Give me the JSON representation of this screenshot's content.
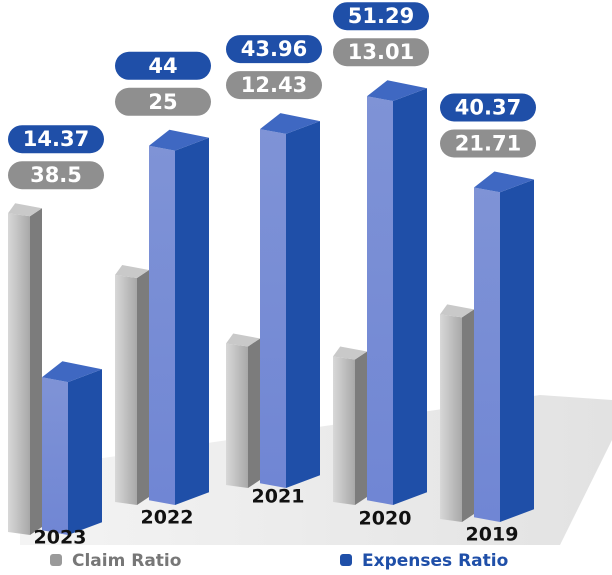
{
  "chart_data": {
    "type": "bar3d",
    "categories": [
      "2023",
      "2022",
      "2021",
      "2020",
      "2019"
    ],
    "series": [
      {
        "name": "Claim Ratio",
        "color": "#9a9a9a",
        "values": [
          38.5,
          25,
          12.43,
          13.01,
          21.71
        ]
      },
      {
        "name": "Expenses Ratio",
        "color": "#1f4fa8",
        "values": [
          14.37,
          44,
          43.96,
          51.29,
          40.37
        ]
      }
    ]
  }
}
